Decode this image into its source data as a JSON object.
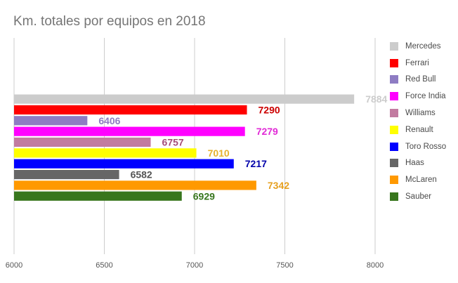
{
  "chart_data": {
    "type": "bar",
    "orientation": "horizontal",
    "title": "Km. totales por equipos en 2018",
    "xlim": [
      6000,
      8000
    ],
    "xticks": [
      6000,
      6500,
      7000,
      7500,
      8000
    ],
    "grid": true,
    "legend_position": "right",
    "series": [
      {
        "name": "Mercedes",
        "value": 7884,
        "color": "#cccccc"
      },
      {
        "name": "Ferrari",
        "value": 7290,
        "color": "#ff0000"
      },
      {
        "name": "Red Bull",
        "value": 6406,
        "color": "#8e7cc3"
      },
      {
        "name": "Force India",
        "value": 7279,
        "color": "#ff00ff"
      },
      {
        "name": "Williams",
        "value": 6757,
        "color": "#c27ba0"
      },
      {
        "name": "Renault",
        "value": 7010,
        "color": "#ffff00"
      },
      {
        "name": "Toro Rosso",
        "value": 7217,
        "color": "#0000ff"
      },
      {
        "name": "Haas",
        "value": 6582,
        "color": "#666666"
      },
      {
        "name": "McLaren",
        "value": 7342,
        "color": "#ff9900"
      },
      {
        "name": "Sauber",
        "value": 6929,
        "color": "#38761d"
      }
    ],
    "label_colors": {
      "Mercedes": "#cccccc",
      "Ferrari": "#cc0000",
      "Red Bull": "#8e7cc3",
      "Force India": "#e12ad6",
      "Williams": "#a64d79",
      "Renault": "#e6b22e",
      "Toro Rosso": "#0000aa",
      "Haas": "#555555",
      "McLaren": "#e6a020",
      "Sauber": "#38761d"
    }
  }
}
